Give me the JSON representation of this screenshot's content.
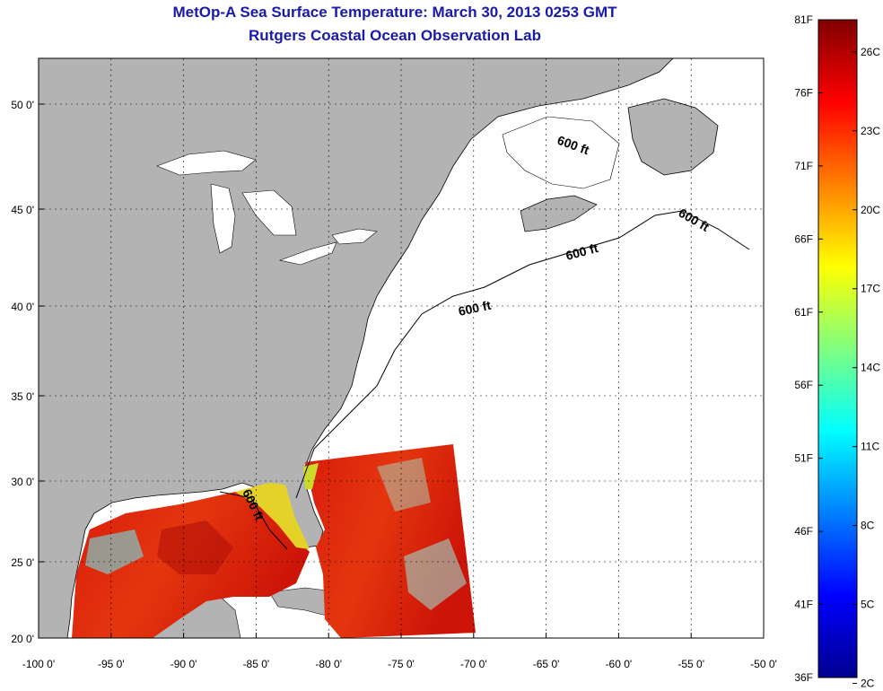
{
  "title": "MetOp-A Sea Surface Temperature:  March 30, 2013 0253 GMT",
  "subtitle": "Rutgers Coastal Ocean Observation Lab",
  "map": {
    "lon_labels": [
      "-100 0'",
      "-95 0'",
      "-90 0'",
      "-85 0'",
      "-80 0'",
      "-75 0'",
      "-70 0'",
      "-65 0'",
      "-60 0'",
      "-55 0'",
      "-50 0'"
    ],
    "lon_values": [
      -100,
      -95,
      -90,
      -85,
      -80,
      -75,
      -70,
      -65,
      -60,
      -55,
      -50
    ],
    "lat_labels": [
      "50 0'",
      "45 0'",
      "40 0'",
      "35 0'",
      "30 0'",
      "25 0'",
      "20 0'"
    ],
    "lat_values": [
      50,
      45,
      40,
      35,
      30,
      25,
      20
    ],
    "isobath_label": "600 ft",
    "land_color": "#b3b3b3",
    "ocean_color": "#ffffff"
  },
  "colorbar": {
    "f_labels": [
      "81F",
      "76F",
      "71F",
      "66F",
      "61F",
      "56F",
      "51F",
      "46F",
      "41F",
      "36F"
    ],
    "c_labels": [
      "26C",
      "23C",
      "20C",
      "17C",
      "14C",
      "11C",
      "8C",
      "5C",
      "2C"
    ],
    "colormap": "jet",
    "min_f": 36,
    "max_f": 81
  }
}
